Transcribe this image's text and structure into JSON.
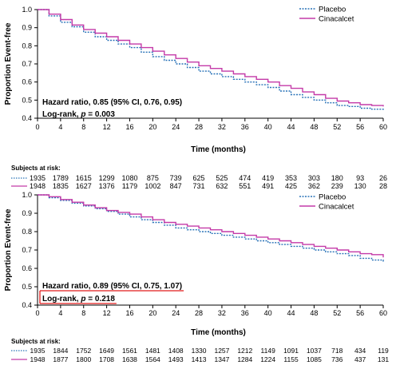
{
  "colors": {
    "placebo": "#2a73b8",
    "cinacalcet": "#c43aa8",
    "underline": "#e11b1b",
    "axis": "#000000"
  },
  "chart_data": [
    {
      "type": "line",
      "title": "",
      "xlabel": "Time (months)",
      "ylabel": "Proportion Event-free",
      "xlim": [
        0,
        60
      ],
      "ylim": [
        0.4,
        1.0
      ],
      "x_ticks": [
        "0",
        "4",
        "8",
        "12",
        "16",
        "20",
        "24",
        "28",
        "32",
        "36",
        "40",
        "44",
        "48",
        "52",
        "56",
        "60"
      ],
      "y_ticks": [
        "0.4",
        "0.5",
        "0.6",
        "0.7",
        "0.8",
        "0.9",
        "1.0"
      ],
      "legend_position": "top-right",
      "series": [
        {
          "name": "Placebo",
          "style": "dotted",
          "x": [
            0,
            2,
            4,
            6,
            8,
            10,
            12,
            14,
            16,
            18,
            20,
            22,
            24,
            26,
            28,
            30,
            32,
            34,
            36,
            38,
            40,
            42,
            44,
            46,
            48,
            50,
            52,
            54,
            56,
            58,
            60
          ],
          "y": [
            1.0,
            0.965,
            0.93,
            0.905,
            0.875,
            0.85,
            0.83,
            0.81,
            0.79,
            0.765,
            0.74,
            0.72,
            0.7,
            0.68,
            0.66,
            0.645,
            0.63,
            0.615,
            0.6,
            0.585,
            0.57,
            0.55,
            0.53,
            0.515,
            0.5,
            0.485,
            0.47,
            0.465,
            0.455,
            0.45,
            0.445
          ]
        },
        {
          "name": "Cinacalcet",
          "style": "solid",
          "x": [
            0,
            2,
            4,
            6,
            8,
            10,
            12,
            14,
            16,
            18,
            20,
            22,
            24,
            26,
            28,
            30,
            32,
            34,
            36,
            38,
            40,
            42,
            44,
            46,
            48,
            50,
            52,
            54,
            56,
            58,
            60
          ],
          "y": [
            1.0,
            0.975,
            0.945,
            0.915,
            0.89,
            0.87,
            0.85,
            0.83,
            0.81,
            0.79,
            0.77,
            0.75,
            0.73,
            0.71,
            0.69,
            0.675,
            0.66,
            0.645,
            0.63,
            0.615,
            0.6,
            0.58,
            0.565,
            0.545,
            0.53,
            0.51,
            0.495,
            0.485,
            0.475,
            0.47,
            0.465
          ]
        }
      ],
      "annotations": {
        "hr_text": "Hazard ratio, 0.85 (95% CI, 0.76, 0.95)",
        "logrank_prefix": "Log-rank, ",
        "logrank_p": "p",
        "logrank_suffix": " = 0.003"
      },
      "risk_table": {
        "title": "Subjects at risk:",
        "rows": [
          {
            "name": "Placebo",
            "style": "dotted",
            "values": [
              "1935",
              "1789",
              "1615",
              "1299",
              "1080",
              "875",
              "739",
              "625",
              "525",
              "474",
              "419",
              "353",
              "303",
              "180",
              "93",
              "26"
            ]
          },
          {
            "name": "Cinacalcet",
            "style": "solid",
            "values": [
              "1948",
              "1835",
              "1627",
              "1376",
              "1179",
              "1002",
              "847",
              "731",
              "632",
              "551",
              "491",
              "425",
              "362",
              "239",
              "130",
              "28"
            ]
          }
        ]
      }
    },
    {
      "type": "line",
      "title": "",
      "xlabel": "Time (months)",
      "ylabel": "Proportion Event-free",
      "xlim": [
        0,
        60
      ],
      "ylim": [
        0.4,
        1.0
      ],
      "x_ticks": [
        "0",
        "4",
        "8",
        "12",
        "16",
        "20",
        "24",
        "28",
        "32",
        "36",
        "40",
        "44",
        "48",
        "52",
        "56",
        "60"
      ],
      "y_ticks": [
        "0.4",
        "0.5",
        "0.6",
        "0.7",
        "0.8",
        "0.9",
        "1.0"
      ],
      "legend_position": "top-right",
      "series": [
        {
          "name": "Placebo",
          "style": "dotted",
          "x": [
            0,
            2,
            4,
            6,
            8,
            10,
            12,
            14,
            16,
            18,
            20,
            22,
            24,
            26,
            28,
            30,
            32,
            34,
            36,
            38,
            40,
            42,
            44,
            46,
            48,
            50,
            52,
            54,
            56,
            58,
            60
          ],
          "y": [
            1.0,
            0.985,
            0.97,
            0.955,
            0.94,
            0.925,
            0.91,
            0.895,
            0.88,
            0.865,
            0.85,
            0.835,
            0.82,
            0.81,
            0.8,
            0.79,
            0.78,
            0.77,
            0.76,
            0.75,
            0.74,
            0.73,
            0.72,
            0.71,
            0.7,
            0.69,
            0.68,
            0.67,
            0.655,
            0.645,
            0.635
          ]
        },
        {
          "name": "Cinacalcet",
          "style": "solid",
          "x": [
            0,
            2,
            4,
            6,
            8,
            10,
            12,
            14,
            16,
            18,
            20,
            22,
            24,
            26,
            28,
            30,
            32,
            34,
            36,
            38,
            40,
            42,
            44,
            46,
            48,
            50,
            52,
            54,
            56,
            58,
            60
          ],
          "y": [
            1.0,
            0.99,
            0.975,
            0.96,
            0.945,
            0.93,
            0.915,
            0.905,
            0.895,
            0.88,
            0.865,
            0.85,
            0.84,
            0.83,
            0.82,
            0.81,
            0.8,
            0.79,
            0.78,
            0.77,
            0.76,
            0.75,
            0.74,
            0.73,
            0.72,
            0.71,
            0.7,
            0.69,
            0.68,
            0.675,
            0.66
          ]
        }
      ],
      "annotations": {
        "hr_text": "Hazard ratio, 0.89 (95% CI, 0.75, 1.07)",
        "logrank_prefix": "Log-rank, ",
        "logrank_p": "p",
        "logrank_suffix": " = 0.218"
      },
      "risk_table": {
        "title": "Subjects at risk:",
        "rows": [
          {
            "name": "Placebo",
            "style": "dotted",
            "values": [
              "1935",
              "1844",
              "1752",
              "1649",
              "1561",
              "1481",
              "1408",
              "1330",
              "1257",
              "1212",
              "1149",
              "1091",
              "1037",
              "718",
              "434",
              "119"
            ]
          },
          {
            "name": "Cinacalcet",
            "style": "solid",
            "values": [
              "1948",
              "1877",
              "1800",
              "1708",
              "1638",
              "1564",
              "1493",
              "1413",
              "1347",
              "1284",
              "1224",
              "1155",
              "1085",
              "736",
              "437",
              "131"
            ]
          }
        ]
      }
    }
  ]
}
